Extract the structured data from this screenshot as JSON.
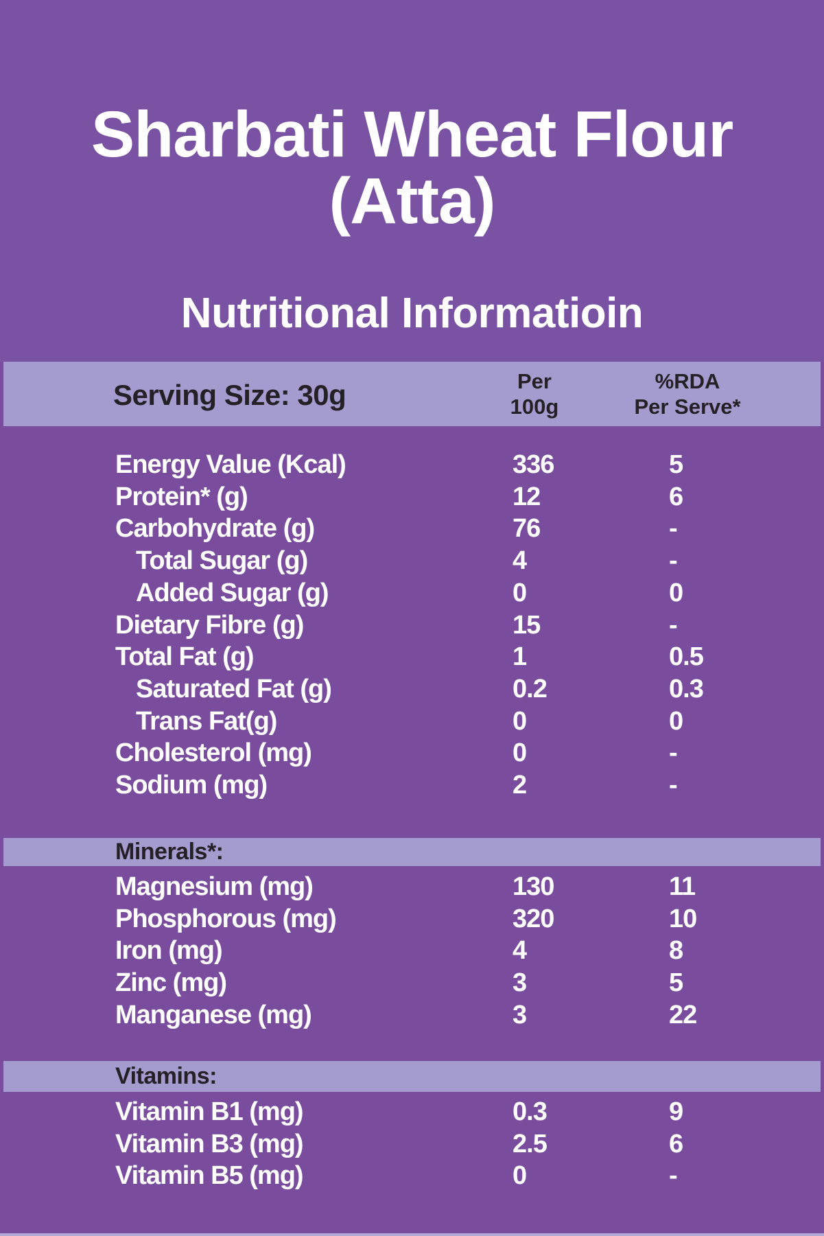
{
  "title": {
    "line1": "Sharbati Wheat Flour",
    "line2": "(Atta)"
  },
  "subtitle": "Nutritional Informatioin",
  "colors": {
    "background_top": "#7A52A4",
    "background_table": "#7A4C9E",
    "band": "#A49CCF",
    "text_light": "#FFFFFF",
    "text_dark": "#232126",
    "bottom_strip": "#B2AAD4"
  },
  "table": {
    "serving_size": "Serving Size: 30g",
    "col_per": {
      "line1": "Per",
      "line2": "100g"
    },
    "col_rda": {
      "line1": "%RDA",
      "line2": "Per Serve*"
    },
    "rows": [
      {
        "label": "Energy Value (Kcal)",
        "per_100g": "336",
        "rda_per_serve": "5",
        "indent": false
      },
      {
        "label": "Protein* (g)",
        "per_100g": "12",
        "rda_per_serve": "6",
        "indent": false
      },
      {
        "label": "Carbohydrate (g)",
        "per_100g": "76",
        "rda_per_serve": "-",
        "indent": false
      },
      {
        "label": "Total Sugar (g)",
        "per_100g": "4",
        "rda_per_serve": "-",
        "indent": true
      },
      {
        "label": "Added Sugar (g)",
        "per_100g": "0",
        "rda_per_serve": "0",
        "indent": true
      },
      {
        "label": "Dietary Fibre (g)",
        "per_100g": "15",
        "rda_per_serve": "-",
        "indent": false
      },
      {
        "label": "Total Fat (g)",
        "per_100g": "1",
        "rda_per_serve": "0.5",
        "indent": false
      },
      {
        "label": "Saturated Fat (g)",
        "per_100g": "0.2",
        "rda_per_serve": "0.3",
        "indent": true
      },
      {
        "label": "Trans Fat(g)",
        "per_100g": "0",
        "rda_per_serve": "0",
        "indent": true
      },
      {
        "label": "Cholesterol (mg)",
        "per_100g": "0",
        "rda_per_serve": "-",
        "indent": false
      },
      {
        "label": "Sodium (mg)",
        "per_100g": "2",
        "rda_per_serve": "-",
        "indent": false
      }
    ],
    "minerals_heading": "Minerals*:",
    "minerals_rows": [
      {
        "label": "Magnesium (mg)",
        "per_100g": "130",
        "rda_per_serve": "11",
        "indent": false
      },
      {
        "label": "Phosphorous (mg)",
        "per_100g": "320",
        "rda_per_serve": "10",
        "indent": false
      },
      {
        "label": "Iron (mg)",
        "per_100g": "4",
        "rda_per_serve": "8",
        "indent": false
      },
      {
        "label": "Zinc (mg)",
        "per_100g": "3",
        "rda_per_serve": "5",
        "indent": false
      },
      {
        "label": "Manganese (mg)",
        "per_100g": "3",
        "rda_per_serve": "22",
        "indent": false
      }
    ],
    "vitamins_heading": "Vitamins:",
    "vitamins_rows": [
      {
        "label": "Vitamin B1 (mg)",
        "per_100g": "0.3",
        "rda_per_serve": "9",
        "indent": false
      },
      {
        "label": "Vitamin B3 (mg)",
        "per_100g": "2.5",
        "rda_per_serve": "6",
        "indent": false
      },
      {
        "label": "Vitamin B5 (mg)",
        "per_100g": "0",
        "rda_per_serve": "-",
        "indent": false
      }
    ]
  }
}
